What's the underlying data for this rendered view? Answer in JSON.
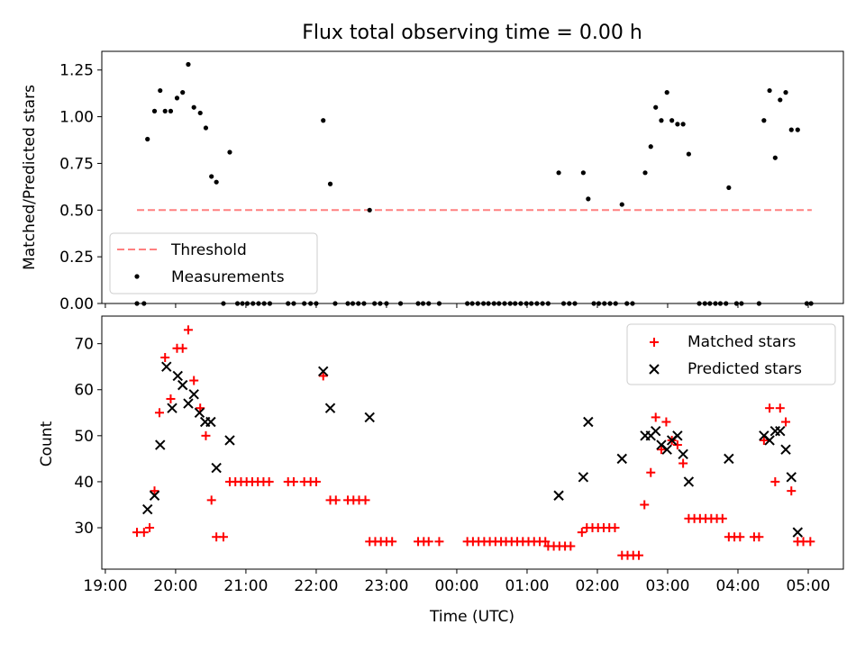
{
  "figure": {
    "title": "Flux total observing time = 0.00 h",
    "xlabel": "Time (UTC)"
  },
  "colors": {
    "threshold": "#ff8080",
    "measurements": "#000000",
    "matched": "#ff0000",
    "predicted": "#000000"
  },
  "chart_data": [
    {
      "type": "scatter",
      "panel": "top",
      "ylabel": "Matched/Predicted stars",
      "ylim": [
        0,
        1.35
      ],
      "yticks": [
        0.0,
        0.25,
        0.5,
        0.75,
        1.0,
        1.25
      ],
      "ytick_labels": [
        "0.00",
        "0.25",
        "0.50",
        "0.75",
        "1.00",
        "1.25"
      ],
      "x_unit": "hours after 19:00 UTC",
      "xlim": [
        -0.05,
        10.5
      ],
      "legend": {
        "position": "lower-left",
        "entries": [
          "Threshold",
          "Measurements"
        ]
      },
      "threshold": {
        "name": "Threshold",
        "value": 0.5,
        "x_range": [
          0.45,
          10.05
        ]
      },
      "series": [
        {
          "name": "Measurements",
          "marker": "dot",
          "points": [
            [
              0.45,
              0.0
            ],
            [
              0.55,
              0.0
            ],
            [
              0.6,
              0.88
            ],
            [
              0.7,
              1.03
            ],
            [
              0.78,
              1.14
            ],
            [
              0.85,
              1.03
            ],
            [
              0.93,
              1.03
            ],
            [
              1.02,
              1.1
            ],
            [
              1.1,
              1.13
            ],
            [
              1.18,
              1.28
            ],
            [
              1.26,
              1.05
            ],
            [
              1.35,
              1.02
            ],
            [
              1.43,
              0.94
            ],
            [
              1.51,
              0.68
            ],
            [
              1.58,
              0.65
            ],
            [
              1.77,
              0.81
            ],
            [
              1.68,
              0.0
            ],
            [
              1.88,
              0.0
            ],
            [
              1.95,
              0.0
            ],
            [
              2.02,
              0.0
            ],
            [
              2.1,
              0.0
            ],
            [
              2.18,
              0.0
            ],
            [
              2.26,
              0.0
            ],
            [
              2.34,
              0.0
            ],
            [
              2.6,
              0.0
            ],
            [
              2.68,
              0.0
            ],
            [
              2.83,
              0.0
            ],
            [
              2.92,
              0.0
            ],
            [
              3.0,
              0.0
            ],
            [
              3.1,
              0.98
            ],
            [
              3.2,
              0.64
            ],
            [
              3.27,
              0.0
            ],
            [
              3.45,
              0.0
            ],
            [
              3.52,
              0.0
            ],
            [
              3.6,
              0.0
            ],
            [
              3.68,
              0.0
            ],
            [
              3.76,
              0.5
            ],
            [
              3.83,
              0.0
            ],
            [
              3.91,
              0.0
            ],
            [
              4.0,
              0.0
            ],
            [
              4.2,
              0.0
            ],
            [
              4.45,
              0.0
            ],
            [
              4.52,
              0.0
            ],
            [
              4.6,
              0.0
            ],
            [
              4.75,
              0.0
            ],
            [
              5.15,
              0.0
            ],
            [
              5.22,
              0.0
            ],
            [
              5.3,
              0.0
            ],
            [
              5.38,
              0.0
            ],
            [
              5.45,
              0.0
            ],
            [
              5.53,
              0.0
            ],
            [
              5.6,
              0.0
            ],
            [
              5.68,
              0.0
            ],
            [
              5.76,
              0.0
            ],
            [
              5.83,
              0.0
            ],
            [
              5.91,
              0.0
            ],
            [
              5.99,
              0.0
            ],
            [
              6.06,
              0.0
            ],
            [
              6.14,
              0.0
            ],
            [
              6.22,
              0.0
            ],
            [
              6.3,
              0.0
            ],
            [
              6.45,
              0.7
            ],
            [
              6.52,
              0.0
            ],
            [
              6.6,
              0.0
            ],
            [
              6.68,
              0.0
            ],
            [
              6.8,
              0.7
            ],
            [
              6.87,
              0.56
            ],
            [
              6.95,
              0.0
            ],
            [
              7.02,
              0.0
            ],
            [
              7.1,
              0.0
            ],
            [
              7.18,
              0.0
            ],
            [
              7.26,
              0.0
            ],
            [
              7.35,
              0.53
            ],
            [
              7.42,
              0.0
            ],
            [
              7.5,
              0.0
            ],
            [
              7.68,
              0.7
            ],
            [
              7.76,
              0.84
            ],
            [
              7.83,
              1.05
            ],
            [
              7.91,
              0.98
            ],
            [
              7.99,
              1.13
            ],
            [
              8.06,
              0.98
            ],
            [
              8.14,
              0.96
            ],
            [
              8.22,
              0.96
            ],
            [
              8.3,
              0.8
            ],
            [
              8.45,
              0.0
            ],
            [
              8.53,
              0.0
            ],
            [
              8.6,
              0.0
            ],
            [
              8.68,
              0.0
            ],
            [
              8.75,
              0.0
            ],
            [
              8.83,
              0.0
            ],
            [
              8.87,
              0.62
            ],
            [
              8.98,
              0.0
            ],
            [
              9.05,
              0.0
            ],
            [
              9.3,
              0.0
            ],
            [
              9.37,
              0.98
            ],
            [
              9.45,
              1.14
            ],
            [
              9.53,
              0.78
            ],
            [
              9.6,
              1.09
            ],
            [
              9.68,
              1.13
            ],
            [
              9.76,
              0.93
            ],
            [
              9.85,
              0.93
            ],
            [
              9.98,
              0.0
            ],
            [
              10.04,
              0.0
            ]
          ]
        }
      ]
    },
    {
      "type": "scatter",
      "panel": "bottom",
      "xlabel": "Time (UTC)",
      "ylabel": "Count",
      "ylim": [
        21,
        76
      ],
      "yticks": [
        30,
        40,
        50,
        60,
        70
      ],
      "ytick_labels": [
        "30",
        "40",
        "50",
        "60",
        "70"
      ],
      "x_unit": "hours after 19:00 UTC",
      "xlim": [
        -0.05,
        10.5
      ],
      "xticks": [
        0,
        1,
        2,
        3,
        4,
        5,
        6,
        7,
        8,
        9,
        10
      ],
      "xtick_labels": [
        "19:00",
        "20:00",
        "21:00",
        "22:00",
        "23:00",
        "00:00",
        "01:00",
        "02:00",
        "03:00",
        "04:00",
        "05:00"
      ],
      "legend": {
        "position": "top-right",
        "entries": [
          "Matched stars",
          "Predicted stars"
        ]
      },
      "series": [
        {
          "name": "Matched stars",
          "marker": "plus",
          "points": [
            [
              0.45,
              29
            ],
            [
              0.55,
              29
            ],
            [
              0.63,
              30
            ],
            [
              0.7,
              38
            ],
            [
              0.77,
              55
            ],
            [
              0.85,
              67
            ],
            [
              0.93,
              58
            ],
            [
              1.02,
              69
            ],
            [
              1.1,
              69
            ],
            [
              1.18,
              73
            ],
            [
              1.26,
              62
            ],
            [
              1.35,
              56
            ],
            [
              1.43,
              50
            ],
            [
              1.51,
              36
            ],
            [
              1.58,
              28
            ],
            [
              1.68,
              28
            ],
            [
              1.77,
              40
            ],
            [
              1.85,
              40
            ],
            [
              1.93,
              40
            ],
            [
              2.01,
              40
            ],
            [
              2.09,
              40
            ],
            [
              2.17,
              40
            ],
            [
              2.25,
              40
            ],
            [
              2.33,
              40
            ],
            [
              2.6,
              40
            ],
            [
              2.68,
              40
            ],
            [
              2.83,
              40
            ],
            [
              2.92,
              40
            ],
            [
              3.0,
              40
            ],
            [
              3.1,
              63
            ],
            [
              3.2,
              36
            ],
            [
              3.28,
              36
            ],
            [
              3.45,
              36
            ],
            [
              3.53,
              36
            ],
            [
              3.61,
              36
            ],
            [
              3.7,
              36
            ],
            [
              3.76,
              27
            ],
            [
              3.84,
              27
            ],
            [
              3.92,
              27
            ],
            [
              4.0,
              27
            ],
            [
              4.08,
              27
            ],
            [
              4.45,
              27
            ],
            [
              4.53,
              27
            ],
            [
              4.6,
              27
            ],
            [
              4.75,
              27
            ],
            [
              5.15,
              27
            ],
            [
              5.23,
              27
            ],
            [
              5.31,
              27
            ],
            [
              5.39,
              27
            ],
            [
              5.47,
              27
            ],
            [
              5.55,
              27
            ],
            [
              5.63,
              27
            ],
            [
              5.7,
              27
            ],
            [
              5.78,
              27
            ],
            [
              5.86,
              27
            ],
            [
              5.94,
              27
            ],
            [
              6.02,
              27
            ],
            [
              6.1,
              27
            ],
            [
              6.18,
              27
            ],
            [
              6.26,
              27
            ],
            [
              6.3,
              26
            ],
            [
              6.38,
              26
            ],
            [
              6.46,
              26
            ],
            [
              6.54,
              26
            ],
            [
              6.62,
              26
            ],
            [
              6.78,
              29
            ],
            [
              6.85,
              30
            ],
            [
              6.93,
              30
            ],
            [
              7.01,
              30
            ],
            [
              7.09,
              30
            ],
            [
              7.17,
              30
            ],
            [
              7.25,
              30
            ],
            [
              7.35,
              24
            ],
            [
              7.43,
              24
            ],
            [
              7.51,
              24
            ],
            [
              7.59,
              24
            ],
            [
              7.67,
              35
            ],
            [
              7.76,
              42
            ],
            [
              7.83,
              54
            ],
            [
              7.91,
              47
            ],
            [
              7.98,
              53
            ],
            [
              8.06,
              49
            ],
            [
              8.14,
              48
            ],
            [
              8.22,
              44
            ],
            [
              8.3,
              32
            ],
            [
              8.38,
              32
            ],
            [
              8.46,
              32
            ],
            [
              8.54,
              32
            ],
            [
              8.62,
              32
            ],
            [
              8.7,
              32
            ],
            [
              8.78,
              32
            ],
            [
              8.87,
              28
            ],
            [
              8.95,
              28
            ],
            [
              9.03,
              28
            ],
            [
              9.23,
              28
            ],
            [
              9.3,
              28
            ],
            [
              9.37,
              49
            ],
            [
              9.45,
              56
            ],
            [
              9.53,
              40
            ],
            [
              9.6,
              56
            ],
            [
              9.68,
              53
            ],
            [
              9.76,
              38
            ],
            [
              9.85,
              27
            ],
            [
              9.93,
              27
            ],
            [
              10.03,
              27
            ]
          ]
        },
        {
          "name": "Predicted stars",
          "marker": "x",
          "points": [
            [
              0.6,
              34
            ],
            [
              0.7,
              37
            ],
            [
              0.78,
              48
            ],
            [
              0.87,
              65
            ],
            [
              0.95,
              56
            ],
            [
              1.03,
              63
            ],
            [
              1.1,
              61
            ],
            [
              1.18,
              57
            ],
            [
              1.26,
              59
            ],
            [
              1.34,
              55
            ],
            [
              1.42,
              53
            ],
            [
              1.5,
              53
            ],
            [
              1.58,
              43
            ],
            [
              1.77,
              49
            ],
            [
              3.1,
              64
            ],
            [
              3.2,
              56
            ],
            [
              3.76,
              54
            ],
            [
              6.45,
              37
            ],
            [
              6.8,
              41
            ],
            [
              6.87,
              53
            ],
            [
              7.35,
              45
            ],
            [
              7.68,
              50
            ],
            [
              7.76,
              50
            ],
            [
              7.83,
              51
            ],
            [
              7.91,
              48
            ],
            [
              7.99,
              47
            ],
            [
              8.06,
              49
            ],
            [
              8.14,
              50
            ],
            [
              8.22,
              46
            ],
            [
              8.3,
              40
            ],
            [
              8.87,
              45
            ],
            [
              9.37,
              50
            ],
            [
              9.45,
              49
            ],
            [
              9.53,
              51
            ],
            [
              9.6,
              51
            ],
            [
              9.68,
              47
            ],
            [
              9.76,
              41
            ],
            [
              9.85,
              29
            ]
          ]
        }
      ]
    }
  ]
}
